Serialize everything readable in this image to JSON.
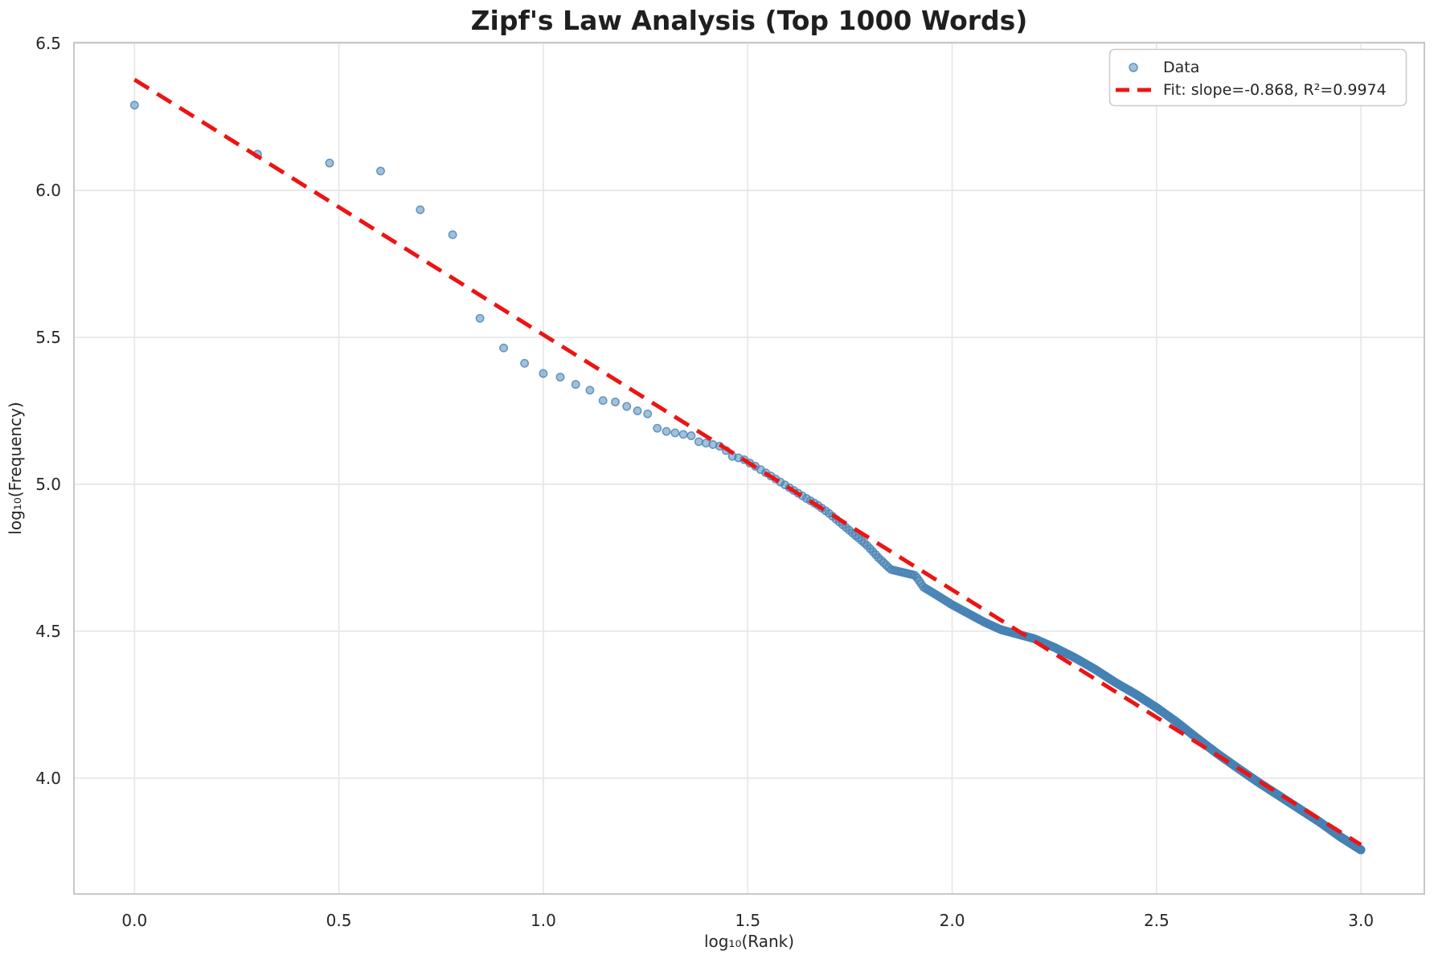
{
  "chart_data": {
    "type": "scatter",
    "title": "Zipf's Law Analysis (Top 1000 Words)",
    "xlabel": "log₁₀(Rank)",
    "ylabel": "log₁₀(Frequency)",
    "xlim": [
      -0.148,
      3.155
    ],
    "ylim": [
      3.606,
      6.503
    ],
    "grid": true,
    "legend_position": "upper right",
    "x_ticks": [
      {
        "value": 0.0,
        "label": "0.0"
      },
      {
        "value": 0.5,
        "label": "0.5"
      },
      {
        "value": 1.0,
        "label": "1.0"
      },
      {
        "value": 1.5,
        "label": "1.5"
      },
      {
        "value": 2.0,
        "label": "2.0"
      },
      {
        "value": 2.5,
        "label": "2.5"
      },
      {
        "value": 3.0,
        "label": "3.0"
      }
    ],
    "y_ticks": [
      {
        "value": 6.5,
        "label": "6.5"
      },
      {
        "value": 6.0,
        "label": "6.0"
      },
      {
        "value": 5.5,
        "label": "5.5"
      },
      {
        "value": 5.0,
        "label": "5.0"
      },
      {
        "value": 4.5,
        "label": "4.5"
      },
      {
        "value": 4.0,
        "label": "4.0"
      }
    ],
    "series": [
      {
        "name": "Data",
        "kind": "scatter",
        "n_points": 1000,
        "x_definition": "log10(rank) for rank = 1 .. 1000",
        "curve_samples": [
          [
            0.0,
            6.29
          ],
          [
            0.301,
            6.123
          ],
          [
            0.477,
            6.093
          ],
          [
            0.602,
            6.066
          ],
          [
            0.699,
            5.934
          ],
          [
            0.778,
            5.85
          ],
          [
            0.845,
            5.565
          ],
          [
            0.903,
            5.464
          ],
          [
            0.954,
            5.412
          ],
          [
            1.0,
            5.377
          ],
          [
            1.041,
            5.365
          ],
          [
            1.079,
            5.34
          ],
          [
            1.114,
            5.32
          ],
          [
            1.146,
            5.285
          ],
          [
            1.176,
            5.28
          ],
          [
            1.204,
            5.265
          ],
          [
            1.23,
            5.25
          ],
          [
            1.255,
            5.24
          ],
          [
            1.279,
            5.19
          ],
          [
            1.301,
            5.18
          ],
          [
            1.322,
            5.175
          ],
          [
            1.342,
            5.17
          ],
          [
            1.362,
            5.165
          ],
          [
            1.38,
            5.145
          ],
          [
            1.398,
            5.14
          ],
          [
            1.415,
            5.135
          ],
          [
            1.431,
            5.13
          ],
          [
            1.447,
            5.115
          ],
          [
            1.462,
            5.095
          ],
          [
            1.477,
            5.09
          ],
          [
            1.49,
            5.085
          ],
          [
            1.52,
            5.06
          ],
          [
            1.56,
            5.025
          ],
          [
            1.6,
            4.99
          ],
          [
            1.64,
            4.955
          ],
          [
            1.67,
            4.93
          ],
          [
            1.7,
            4.9
          ],
          [
            1.73,
            4.865
          ],
          [
            1.76,
            4.83
          ],
          [
            1.79,
            4.795
          ],
          [
            1.82,
            4.75
          ],
          [
            1.85,
            4.71
          ],
          [
            1.88,
            4.7
          ],
          [
            1.91,
            4.69
          ],
          [
            1.93,
            4.65
          ],
          [
            1.96,
            4.625
          ],
          [
            2.0,
            4.59
          ],
          [
            2.04,
            4.56
          ],
          [
            2.08,
            4.53
          ],
          [
            2.12,
            4.505
          ],
          [
            2.16,
            4.49
          ],
          [
            2.2,
            4.475
          ],
          [
            2.25,
            4.445
          ],
          [
            2.3,
            4.41
          ],
          [
            2.35,
            4.37
          ],
          [
            2.4,
            4.325
          ],
          [
            2.45,
            4.285
          ],
          [
            2.5,
            4.24
          ],
          [
            2.55,
            4.19
          ],
          [
            2.6,
            4.135
          ],
          [
            2.65,
            4.082
          ],
          [
            2.7,
            4.033
          ],
          [
            2.75,
            3.985
          ],
          [
            2.8,
            3.94
          ],
          [
            2.85,
            3.895
          ],
          [
            2.9,
            3.85
          ],
          [
            2.95,
            3.8
          ],
          [
            3.0,
            3.756
          ]
        ]
      },
      {
        "name": "Fit",
        "kind": "line",
        "slope": -0.868,
        "intercept": 6.377,
        "r_squared": 0.9974,
        "x_range": [
          0,
          3
        ]
      }
    ],
    "colors": {
      "marker": "#4682b4",
      "marker_fill_alpha": 0.5,
      "marker_edge_alpha": 0.8,
      "fit_line": "#ed1414",
      "grid": "#e8e8e8",
      "spine": "#c8c8c8",
      "text": "#262626"
    }
  },
  "legend": {
    "data_label": "Data",
    "fit_label": "Fit: slope=-0.868, R²=0.9974"
  }
}
